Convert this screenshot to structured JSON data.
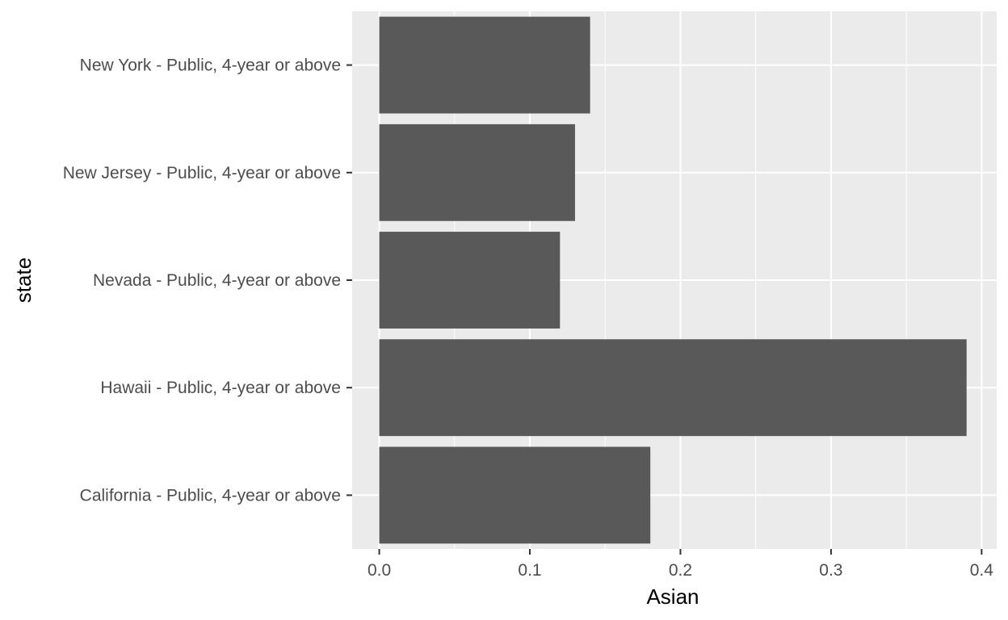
{
  "chart_data": {
    "type": "bar",
    "orientation": "horizontal",
    "categories": [
      "New York - Public, 4-year or above",
      "New Jersey - Public, 4-year or above",
      "Nevada - Public, 4-year or above",
      "Hawaii - Public, 4-year or above",
      "California - Public, 4-year or above"
    ],
    "values": [
      0.14,
      0.13,
      0.12,
      0.39,
      0.18
    ],
    "xlabel": "Asian",
    "ylabel": "state",
    "xlim": [
      -0.018,
      0.41
    ],
    "x_ticks": [
      "0.0",
      "0.1",
      "0.2",
      "0.3",
      "0.4"
    ],
    "x_tick_values": [
      0,
      0.1,
      0.2,
      0.3,
      0.4
    ],
    "grid": true,
    "legend": "none",
    "colors": {
      "bar": "#595959",
      "panel": "#ebebeb",
      "grid": "#ffffff",
      "tick_text": "#4d4d4d",
      "tick_mark": "#333333"
    }
  }
}
